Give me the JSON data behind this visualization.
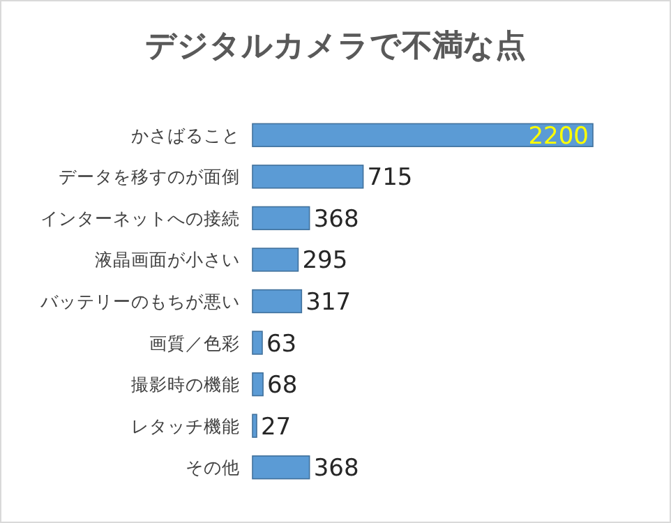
{
  "chart_data": {
    "type": "bar",
    "orientation": "horizontal",
    "title": "デジタルカメラで不満な点",
    "categories": [
      "かさばること",
      "データを移すのが面倒",
      "インターネットへの接続",
      "液晶画面が小さい",
      "バッテリーのもちが悪い",
      "画質／色彩",
      "撮影時の機能",
      "レタッチ機能",
      "その他"
    ],
    "values": [
      2200,
      715,
      368,
      295,
      317,
      63,
      68,
      27,
      368
    ],
    "color": "#5b9bd5",
    "data_labels": true
  }
}
